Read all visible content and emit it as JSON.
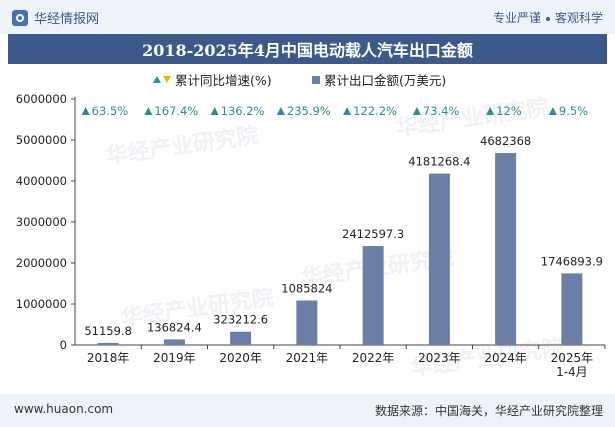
{
  "header": {
    "brand": "华经情报网",
    "tag1": "专业严谨",
    "tag2": "客观科学"
  },
  "title": "2018-2025年4月中国电动载人汽车出口金额",
  "footer": {
    "url": "www.huaon.com",
    "source": "数据来源：中国海关，华经产业研究院整理"
  },
  "watermark": "华经产业研究院",
  "chart_data": {
    "type": "bar",
    "categories": [
      "2018年",
      "2019年",
      "2020年",
      "2021年",
      "2022年",
      "2023年",
      "2024年",
      "2025年\n1-4月"
    ],
    "series": [
      {
        "name": "累计出口金额(万美元)",
        "values": [
          51159.8,
          136824.4,
          323212.6,
          1085824,
          2412597.3,
          4181268.4,
          4682368,
          1746893.9
        ]
      },
      {
        "name": "累计同比增速(%)",
        "values": [
          63.5,
          167.4,
          136.2,
          235.9,
          122.2,
          73.4,
          12,
          9.5
        ]
      }
    ],
    "value_labels": [
      "51159.8",
      "136824.4",
      "323212.6",
      "1085824",
      "2412597.3",
      "4181268.4",
      "4682368",
      "1746893.9"
    ],
    "growth_labels": [
      "63.5%",
      "167.4%",
      "136.2%",
      "235.9%",
      "122.2%",
      "73.4%",
      "12%",
      "9.5%"
    ],
    "ylim": [
      0,
      6000000
    ],
    "yticks": [
      "0",
      "1000000",
      "2000000",
      "3000000",
      "4000000",
      "5000000",
      "6000000"
    ],
    "legend_position": "top-center",
    "colors": {
      "bar": "#6b7fa6",
      "arrow_up": "#2e8b96",
      "arrow_down": "#f0b400"
    }
  }
}
